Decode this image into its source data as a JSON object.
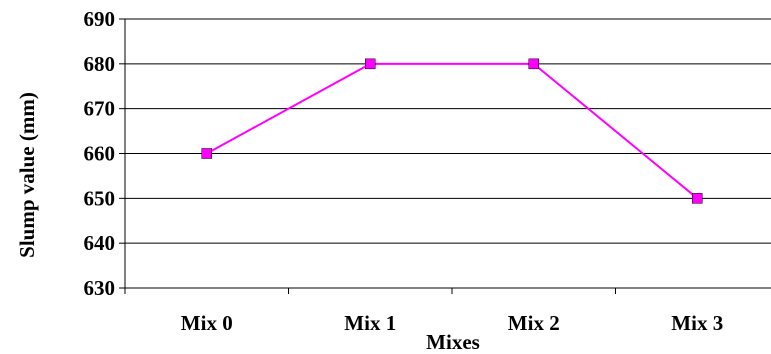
{
  "chart_data": {
    "type": "line",
    "categories": [
      "Mix 0",
      "Mix 1",
      "Mix 2",
      "Mix 3"
    ],
    "series": [
      {
        "values": [
          660,
          680,
          680,
          650
        ],
        "color": "#FF00FF",
        "marker": "square"
      }
    ],
    "xlabel": "Mixes",
    "ylabel": "Slump value (mm)",
    "ylim": [
      630,
      690
    ],
    "ytick_step": 10,
    "yticks": [
      "630",
      "640",
      "650",
      "660",
      "670",
      "680",
      "690"
    ],
    "grid": "horizontal"
  }
}
